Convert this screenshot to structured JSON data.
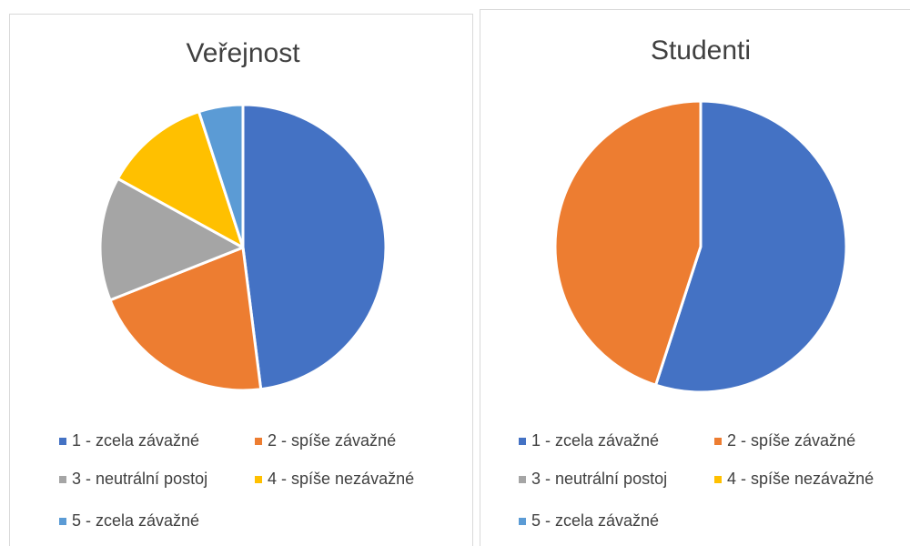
{
  "chart_data": [
    {
      "type": "pie",
      "title": "Veřejnost",
      "categories": [
        "1 - zcela závažné",
        "2 - spíše závažné",
        "3 - neutrální postoj",
        "4 - spíše nezávažné",
        "5 - zcela závažné"
      ],
      "values": [
        48,
        21,
        14,
        12,
        5
      ],
      "colors": [
        "#4472c4",
        "#ed7d31",
        "#a5a5a5",
        "#ffc000",
        "#5b9bd5"
      ]
    },
    {
      "type": "pie",
      "title": "Studenti",
      "categories": [
        "1 - zcela závažné",
        "2 - spíše závažné",
        "3 - neutrální postoj",
        "4 - spíše nezávažné",
        "5 - zcela závažné"
      ],
      "values": [
        55,
        45,
        0,
        0,
        0
      ],
      "colors": [
        "#4472c4",
        "#ed7d31",
        "#a5a5a5",
        "#ffc000",
        "#5b9bd5"
      ]
    }
  ]
}
